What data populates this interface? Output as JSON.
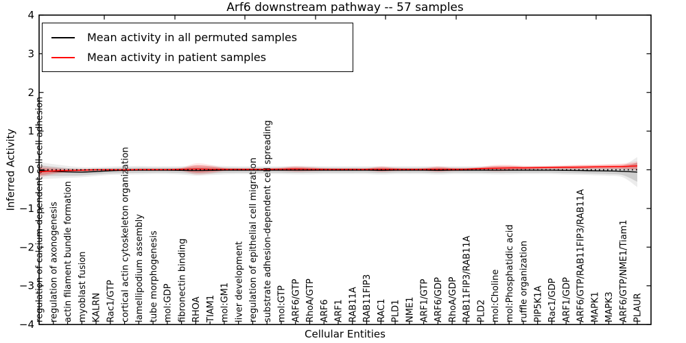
{
  "figure": {
    "title": "Arf6 downstream pathway -- 57 samples",
    "xlabel": "Cellular Entities",
    "ylabel": "Inferred Activity"
  },
  "legend": {
    "position": "upper left",
    "items": [
      {
        "label": "Mean activity in all permuted samples",
        "color": "#000000"
      },
      {
        "label": "Mean activity in patient samples",
        "color": "#ff0000"
      }
    ]
  },
  "chart_data": {
    "type": "line",
    "title": "Arf6 downstream pathway -- 57 samples",
    "xlabel": "Cellular Entities",
    "ylabel": "Inferred Activity",
    "ylim": [
      -4,
      4
    ],
    "yticks": [
      4,
      3,
      2,
      1,
      0,
      -1,
      -2,
      -3,
      -4
    ],
    "ytick_labels": [
      "4",
      "3",
      "2",
      "1",
      "0",
      "−1",
      "−2",
      "−3",
      "−4"
    ],
    "grid": false,
    "legend_position": "upper left",
    "zero_line": {
      "style": "dotted",
      "color": "#000000",
      "y": 0
    },
    "categories": [
      "regulation of calcium-dependent cell-cell adhesion",
      "regulation of axonogenesis",
      "actin filament bundle formation",
      "myoblast fusion",
      "KALRN",
      "Rac1/GTP",
      "cortical actin cytoskeleton organization",
      "lamellipodium assembly",
      "tube morphogenesis",
      "mol:GDP",
      "fibronectin binding",
      "RHOA",
      "TIAM1",
      "mol:GM1",
      "liver development",
      "regulation of epithelial cell migration",
      "substrate adhesion-dependent cell spreading",
      "mol:GTP",
      "ARF6/GTP",
      "RhoA/GTP",
      "ARF6",
      "ARF1",
      "RAB11A",
      "RAB11FIP3",
      "RAC1",
      "PLD1",
      "NME1",
      "ARF1/GTP",
      "ARF6/GDP",
      "RhoA/GDP",
      "RAB11FIP3/RAB11A",
      "PLD2",
      "mol:Choline",
      "mol:Phosphatidic acid",
      "ruffle organization",
      "PIP5K1A",
      "Rac1/GDP",
      "ARF1/GDP",
      "ARF6/GTP/RAB11FIP3/RAB11A",
      "MAPK1",
      "MAPK3",
      "ARF6/GTP/NME1/Tiam1",
      "PLAUR"
    ],
    "series": [
      {
        "name": "Mean activity in all permuted samples",
        "color": "#000000",
        "values": [
          -0.02,
          -0.04,
          -0.055,
          -0.06,
          -0.045,
          -0.025,
          -0.015,
          -0.01,
          -0.01,
          -0.01,
          -0.015,
          -0.02,
          -0.015,
          -0.01,
          -0.01,
          -0.01,
          -0.01,
          -0.01,
          -0.01,
          -0.01,
          -0.01,
          -0.01,
          -0.01,
          -0.01,
          -0.015,
          -0.01,
          -0.01,
          -0.01,
          -0.015,
          -0.01,
          -0.01,
          -0.01,
          -0.01,
          -0.01,
          -0.01,
          -0.01,
          -0.01,
          -0.015,
          -0.02,
          -0.025,
          -0.03,
          -0.04,
          -0.06
        ]
      },
      {
        "name": "Mean activity in patient samples",
        "color": "#ff0000",
        "values": [
          -0.05,
          -0.03,
          -0.02,
          -0.01,
          0,
          0,
          0,
          0.005,
          0.005,
          0.005,
          0.01,
          0.02,
          0.015,
          0.01,
          0.01,
          0.01,
          0.01,
          0.015,
          0.02,
          0.015,
          0.01,
          0.01,
          0.01,
          0.01,
          0.015,
          0.01,
          0.01,
          0.01,
          0.015,
          0.01,
          0.015,
          0.03,
          0.04,
          0.05,
          0.05,
          0.055,
          0.06,
          0.065,
          0.07,
          0.075,
          0.08,
          0.085,
          0.1
        ]
      }
    ],
    "bands": [
      {
        "series": "Mean activity in all permuted samples",
        "color": "#888888",
        "half_width": [
          0.14,
          0.12,
          0.1,
          0.085,
          0.075,
          0.07,
          0.07,
          0.07,
          0.065,
          0.065,
          0.07,
          0.085,
          0.08,
          0.07,
          0.065,
          0.065,
          0.065,
          0.065,
          0.07,
          0.07,
          0.065,
          0.065,
          0.065,
          0.065,
          0.07,
          0.065,
          0.065,
          0.065,
          0.07,
          0.065,
          0.065,
          0.065,
          0.07,
          0.07,
          0.065,
          0.065,
          0.065,
          0.07,
          0.07,
          0.075,
          0.08,
          0.1,
          0.25
        ]
      },
      {
        "series": "Mean activity in patient samples",
        "color": "#ff0000",
        "half_width": [
          0.1,
          0.06,
          0.035,
          0.025,
          0.02,
          0.02,
          0.02,
          0.02,
          0.02,
          0.02,
          0.03,
          0.095,
          0.075,
          0.03,
          0.02,
          0.02,
          0.02,
          0.03,
          0.05,
          0.04,
          0.025,
          0.02,
          0.02,
          0.02,
          0.05,
          0.03,
          0.02,
          0.025,
          0.05,
          0.03,
          0.025,
          0.03,
          0.055,
          0.05,
          0.035,
          0.03,
          0.03,
          0.035,
          0.04,
          0.04,
          0.045,
          0.05,
          0.08
        ]
      }
    ]
  }
}
